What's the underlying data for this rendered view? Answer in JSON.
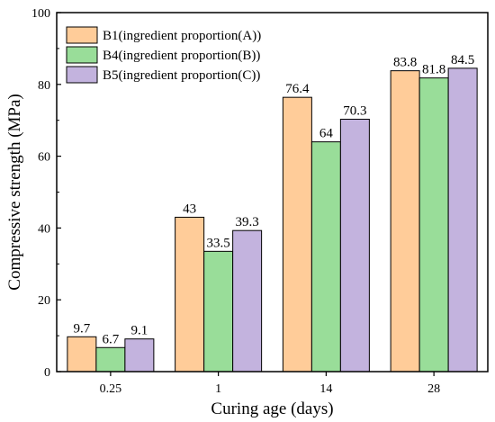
{
  "chart_data": {
    "type": "bar",
    "xlabel": "Curing age (days)",
    "ylabel": "Compressive strength (MPa)",
    "categories": [
      "0.25",
      "1",
      "14",
      "28"
    ],
    "ylim": [
      0,
      100
    ],
    "yticks": [
      0,
      20,
      40,
      60,
      80,
      100
    ],
    "grid": false,
    "legend_position": "top-left",
    "series": [
      {
        "name": "B1(ingredient proportion(A))",
        "values": [
          9.7,
          43,
          76.4,
          83.8
        ],
        "labels": [
          "9.7",
          "43",
          "76.4",
          "83.8"
        ],
        "color": "#FFCC99"
      },
      {
        "name": "B4(ingredient proportion(B))",
        "values": [
          6.7,
          33.5,
          64,
          81.8
        ],
        "labels": [
          "6.7",
          "33.5",
          "64",
          "81.8"
        ],
        "color": "#99DD99"
      },
      {
        "name": "B5(ingredient proportion(C))",
        "values": [
          9.1,
          39.3,
          70.3,
          84.5
        ],
        "labels": [
          "9.1",
          "39.3",
          "70.3",
          "84.5"
        ],
        "color": "#C3B3DE"
      }
    ]
  }
}
